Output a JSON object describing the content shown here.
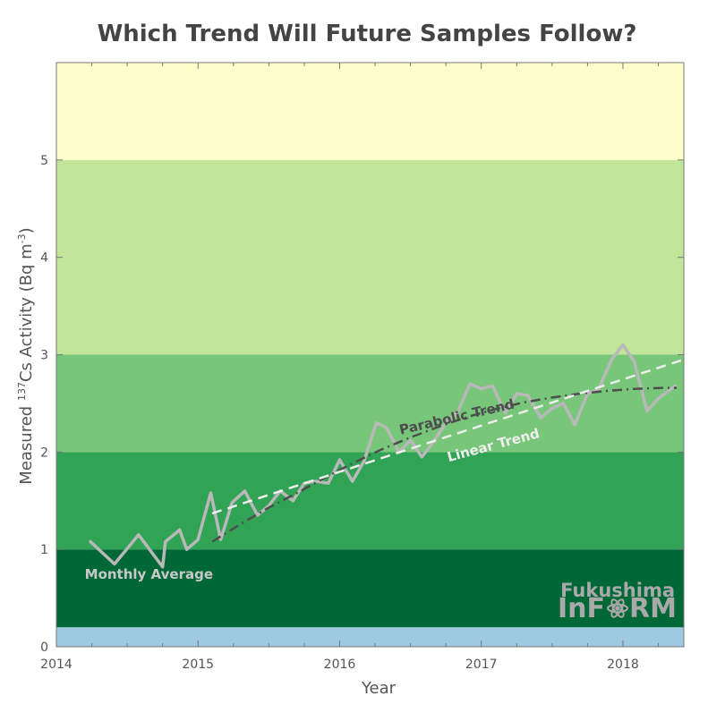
{
  "chart_data": {
    "type": "line",
    "title": "Which Trend Will Future Samples Follow?",
    "xlabel": "Year",
    "ylabel_prefix": "Measured ",
    "ylabel_isotope_mass": "137",
    "ylabel_element": "Cs Activity (Bq m",
    "ylabel_exponent": "-3",
    "ylabel_suffix": ")",
    "xlim": [
      2014.0,
      2018.43
    ],
    "ylim": [
      0,
      6.0
    ],
    "x_ticks": [
      2014,
      2015,
      2016,
      2017,
      2018
    ],
    "y_ticks": [
      0,
      1,
      2,
      3,
      4,
      5
    ],
    "grid": false,
    "bands": [
      {
        "y0": 0.0,
        "y1": 0.2,
        "color": "#9ecae1"
      },
      {
        "y0": 0.2,
        "y1": 1.0,
        "color": "#006837"
      },
      {
        "y0": 1.0,
        "y1": 2.0,
        "color": "#31a354"
      },
      {
        "y0": 2.0,
        "y1": 3.0,
        "color": "#78c679"
      },
      {
        "y0": 3.0,
        "y1": 5.0,
        "color": "#c2e699"
      },
      {
        "y0": 5.0,
        "y1": 6.0,
        "color": "#ffffcc"
      }
    ],
    "series": [
      {
        "name": "Monthly Average",
        "color": "#b8b8b8",
        "style": "solid",
        "x": [
          2014.24,
          2014.41,
          2014.58,
          2014.75,
          2014.77,
          2014.87,
          2014.92,
          2015.0,
          2015.09,
          2015.16,
          2015.24,
          2015.33,
          2015.42,
          2015.5,
          2015.58,
          2015.67,
          2015.75,
          2015.83,
          2015.92,
          2016.0,
          2016.09,
          2016.17,
          2016.26,
          2016.33,
          2016.42,
          2016.5,
          2016.58,
          2016.66,
          2016.75,
          2016.83,
          2016.92,
          2017.0,
          2017.08,
          2017.17,
          2017.25,
          2017.33,
          2017.42,
          2017.5,
          2017.58,
          2017.66,
          2017.75,
          2017.83,
          2017.92,
          2018.0,
          2018.08,
          2018.17,
          2018.25,
          2018.37
        ],
        "y": [
          1.08,
          0.85,
          1.15,
          0.82,
          1.08,
          1.2,
          1.0,
          1.1,
          1.58,
          1.1,
          1.48,
          1.6,
          1.35,
          1.45,
          1.6,
          1.5,
          1.68,
          1.7,
          1.68,
          1.92,
          1.7,
          1.9,
          2.3,
          2.25,
          2.0,
          2.12,
          1.95,
          2.1,
          2.3,
          2.4,
          2.7,
          2.65,
          2.68,
          2.4,
          2.6,
          2.58,
          2.35,
          2.45,
          2.5,
          2.28,
          2.6,
          2.65,
          2.95,
          3.1,
          2.93,
          2.42,
          2.55,
          2.68
        ]
      },
      {
        "name": "Parabolic Trend",
        "color": "#4d4d4d",
        "style": "dash-dot",
        "x": [
          2015.1,
          2015.3,
          2015.5,
          2015.7,
          2015.9,
          2016.1,
          2016.3,
          2016.5,
          2016.7,
          2016.9,
          2017.1,
          2017.3,
          2017.5,
          2017.7,
          2017.9,
          2018.1,
          2018.3,
          2018.38
        ],
        "y": [
          1.08,
          1.26,
          1.43,
          1.58,
          1.74,
          1.89,
          2.03,
          2.15,
          2.26,
          2.36,
          2.44,
          2.51,
          2.56,
          2.6,
          2.63,
          2.65,
          2.66,
          2.66
        ]
      },
      {
        "name": "Linear Trend",
        "color": "#eeeeee",
        "style": "dashed",
        "x": [
          2015.1,
          2018.43
        ],
        "y": [
          1.37,
          2.95
        ]
      }
    ],
    "annotations": [
      {
        "text": "Monthly Average",
        "x": 2014.2,
        "y": 0.7,
        "color": "#c8c8c8",
        "rotate": 0
      },
      {
        "text": "Parabolic Trend",
        "x": 2016.43,
        "y": 2.18,
        "color": "#4d4d4d",
        "rotate": -13
      },
      {
        "text": "Linear Trend",
        "x": 2016.77,
        "y": 1.9,
        "color": "#eeeeee",
        "rotate": -15
      }
    ]
  },
  "logo": {
    "line1": "Fukushima",
    "line2_before": "InF",
    "line2_after": "RM",
    "atom_icon": "atom-icon"
  }
}
